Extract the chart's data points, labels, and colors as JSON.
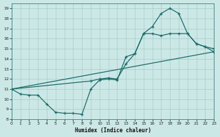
{
  "xlabel": "Humidex (Indice chaleur)",
  "bg_color": "#cce8e6",
  "grid_color": "#aad0ce",
  "line_color": "#1a6b6b",
  "xlim": [
    0,
    23
  ],
  "ylim": [
    8,
    19.5
  ],
  "xticks": [
    0,
    1,
    2,
    3,
    4,
    5,
    6,
    7,
    8,
    9,
    10,
    11,
    12,
    13,
    14,
    15,
    16,
    17,
    18,
    19,
    20,
    21,
    22,
    23
  ],
  "yticks": [
    8,
    9,
    10,
    11,
    12,
    13,
    14,
    15,
    16,
    17,
    18,
    19
  ],
  "curve1_x": [
    0,
    1,
    2,
    3,
    4,
    5,
    6,
    7,
    8,
    9,
    10,
    11,
    12,
    13,
    14,
    15,
    16,
    17,
    18,
    19,
    20,
    21,
    22,
    23
  ],
  "curve1_y": [
    11.0,
    10.5,
    10.4,
    10.4,
    9.5,
    8.7,
    8.6,
    8.6,
    8.5,
    11.0,
    11.9,
    12.0,
    11.9,
    14.2,
    14.5,
    16.5,
    17.2,
    18.5,
    19.0,
    18.5,
    16.5,
    15.5,
    15.2,
    15.0
  ],
  "curve2_x": [
    0,
    9,
    10,
    11,
    12,
    13,
    14,
    15,
    16,
    17,
    18,
    19,
    20,
    21,
    22,
    23
  ],
  "curve2_y": [
    11.0,
    11.8,
    12.0,
    12.1,
    12.0,
    13.5,
    14.5,
    16.5,
    16.5,
    16.3,
    16.5,
    16.5,
    16.5,
    15.5,
    15.2,
    14.7
  ],
  "curve3_x": [
    0,
    23
  ],
  "curve3_y": [
    11.0,
    14.7
  ]
}
